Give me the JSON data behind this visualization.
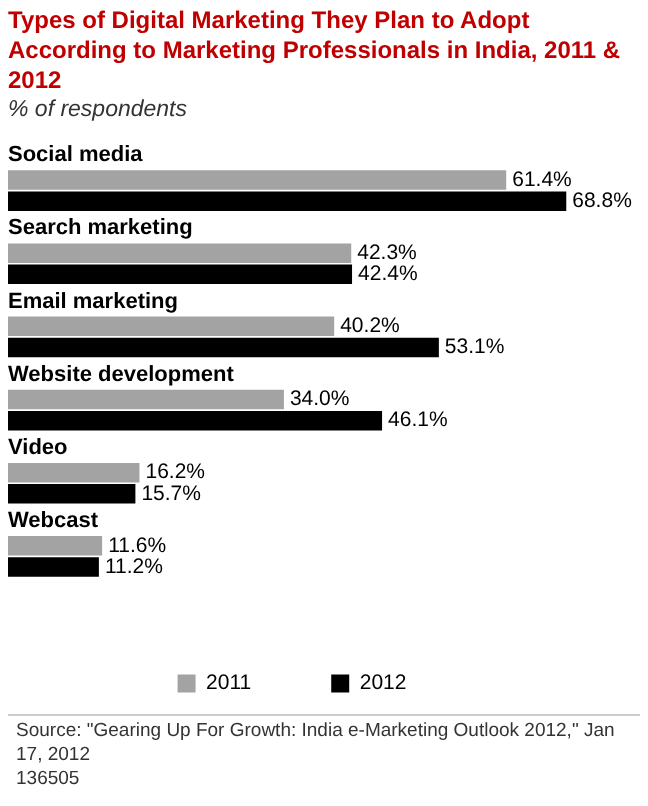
{
  "chart_data": {
    "type": "bar",
    "orientation": "horizontal",
    "title": "Types of Digital Marketing They Plan to Adopt According to Marketing Professionals in India, 2011 & 2012",
    "subtitle": "% of respondents",
    "categories": [
      "Social media",
      "Search marketing",
      "Email marketing",
      "Website development",
      "Video",
      "Webcast"
    ],
    "series": [
      {
        "name": "2011",
        "color": "#a3a3a3",
        "values": [
          61.4,
          42.3,
          40.2,
          34.0,
          16.2,
          11.6
        ],
        "value_labels": [
          "61.4%",
          "42.3%",
          "40.2%",
          "34.0%",
          "16.2%",
          "11.6%"
        ]
      },
      {
        "name": "2012",
        "color": "#000000",
        "values": [
          68.8,
          42.4,
          53.1,
          46.1,
          15.7,
          11.2
        ],
        "value_labels": [
          "68.8%",
          "42.4%",
          "53.1%",
          "46.1%",
          "15.7%",
          "11.2%"
        ]
      }
    ],
    "legend": "bottom",
    "tick_labels": false,
    "annotations": [
      "Source: \"Gearing Up For Growth: India e-Marketing Outlook 2012,\" Jan 17, 2012",
      "136505"
    ]
  }
}
